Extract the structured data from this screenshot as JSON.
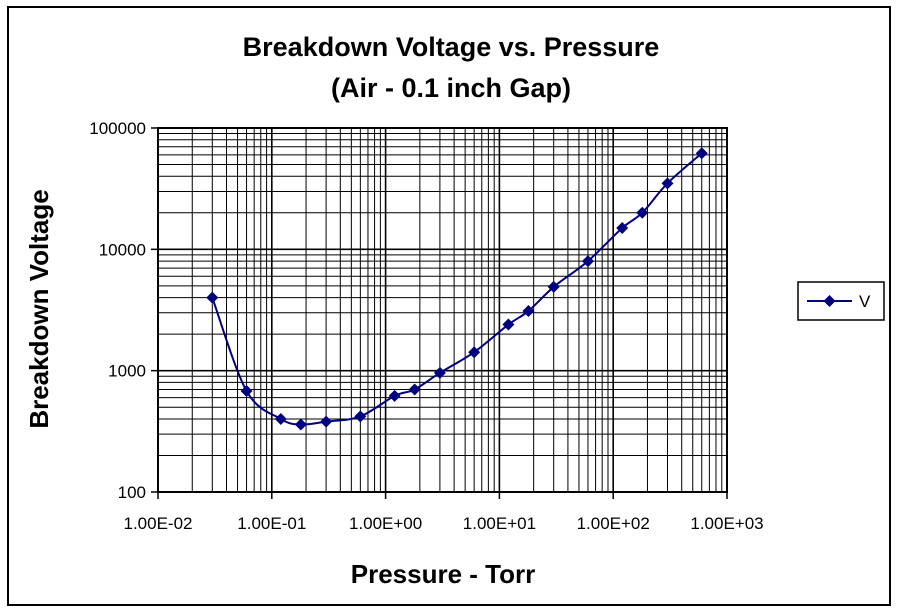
{
  "chart_data": {
    "type": "line",
    "title": "Breakdown Voltage vs. Pressure",
    "subtitle": "(Air - 0.1 inch Gap)",
    "xlabel": "Pressure - Torr",
    "ylabel": "Breakdown Voltage",
    "x_scale": "log",
    "y_scale": "log",
    "xlim": [
      0.01,
      1000
    ],
    "ylim": [
      100,
      100000
    ],
    "x_tick_labels": [
      "1.00E-02",
      "1.00E-01",
      "1.00E+00",
      "1.00E+01",
      "1.00E+02",
      "1.00E+03"
    ],
    "y_tick_labels": [
      "100",
      "1000",
      "10000",
      "100000"
    ],
    "grid": true,
    "legend": "right",
    "series": [
      {
        "name": "V",
        "color": "#000080",
        "marker": "diamond",
        "x": [
          0.03,
          0.06,
          0.12,
          0.18,
          0.3,
          0.6,
          1.2,
          1.8,
          3,
          6,
          12,
          18,
          30,
          60,
          120,
          180,
          300,
          600
        ],
        "y": [
          4000,
          680,
          400,
          360,
          380,
          420,
          620,
          700,
          960,
          1420,
          2400,
          3100,
          4900,
          8000,
          15000,
          20000,
          35000,
          62000
        ]
      }
    ]
  }
}
